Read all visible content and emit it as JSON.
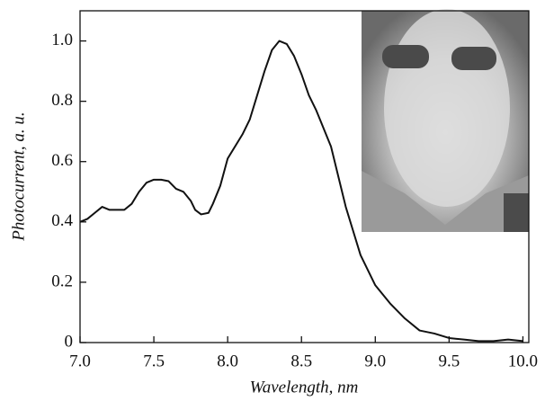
{
  "chart_data": {
    "type": "line",
    "xlabel": "Wavelength, nm",
    "ylabel": "Photocurrent, a. u.",
    "x": [
      7.0,
      7.05,
      7.1,
      7.15,
      7.2,
      7.3,
      7.35,
      7.4,
      7.45,
      7.5,
      7.55,
      7.6,
      7.65,
      7.7,
      7.75,
      7.78,
      7.82,
      7.87,
      7.9,
      7.95,
      8.0,
      8.1,
      8.15,
      8.2,
      8.25,
      8.3,
      8.35,
      8.4,
      8.45,
      8.5,
      8.55,
      8.6,
      8.7,
      8.8,
      8.9,
      9.0,
      9.1,
      9.2,
      9.3,
      9.4,
      9.5,
      9.6,
      9.7,
      9.8,
      9.9,
      10.0
    ],
    "series": [
      {
        "color": "#111111",
        "values": [
          0.4,
          0.41,
          0.43,
          0.45,
          0.44,
          0.44,
          0.46,
          0.5,
          0.53,
          0.54,
          0.54,
          0.535,
          0.51,
          0.5,
          0.47,
          0.44,
          0.425,
          0.43,
          0.46,
          0.52,
          0.61,
          0.69,
          0.74,
          0.82,
          0.9,
          0.97,
          1.0,
          0.99,
          0.95,
          0.89,
          0.82,
          0.77,
          0.65,
          0.45,
          0.29,
          0.19,
          0.13,
          0.08,
          0.04,
          0.03,
          0.015,
          0.01,
          0.005,
          0.005,
          0.01,
          0.005
        ]
      }
    ],
    "xlim": [
      7.0,
      10.04
    ],
    "ylim": [
      0,
      1.1
    ],
    "xticks": [
      {
        "value": 7,
        "label": "7.0"
      },
      7.5,
      {
        "value": 8,
        "label": "8.0"
      },
      8.5,
      {
        "value": 9,
        "label": "9.0"
      },
      9.5,
      {
        "value": 10,
        "label": "10.0"
      }
    ],
    "yticks": [
      0,
      0.2,
      0.4,
      0.6,
      0.8,
      {
        "value": 1,
        "label": "1.0"
      }
    ],
    "grid": false
  }
}
